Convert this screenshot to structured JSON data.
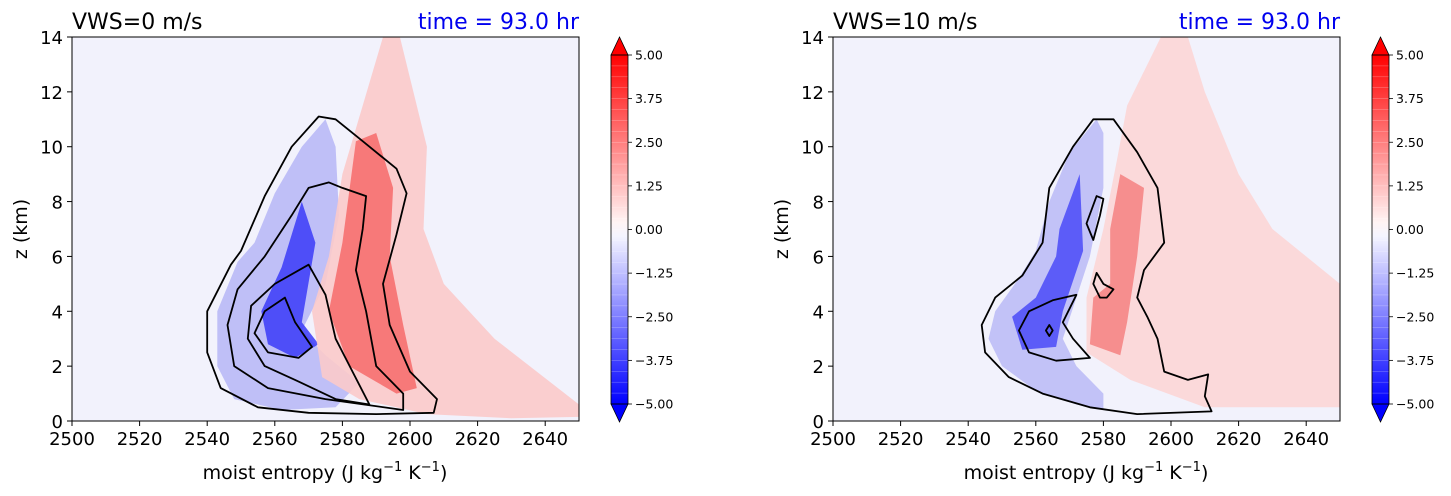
{
  "chart_data": [
    {
      "type": "contour",
      "title": "VWS=0 m/s",
      "time_label": "time = 93.0 hr",
      "xlabel": "moist entropy (J kg",
      "xlabel_sup1": "−1",
      "xlabel_mid": " K",
      "xlabel_sup2": "−1",
      "xlabel_end": ")",
      "ylabel": "z (km)",
      "xlim": [
        2500,
        2650
      ],
      "ylim": [
        0,
        14
      ],
      "xticks": [
        "2500",
        "2520",
        "2540",
        "2560",
        "2580",
        "2600",
        "2620",
        "2640"
      ],
      "yticks": [
        "0",
        "2",
        "4",
        "6",
        "8",
        "10",
        "12",
        "14"
      ],
      "colorbar": {
        "min": -5.0,
        "max": 5.0,
        "extend": "both",
        "ticks": [
          "5.00",
          "3.75",
          "2.50",
          "1.25",
          "0.00",
          "−1.25",
          "−2.50",
          "−3.75",
          "−5.00"
        ]
      },
      "negative_blob": [
        [
          2575,
          11
        ],
        [
          2568,
          10
        ],
        [
          2560,
          8.3
        ],
        [
          2554,
          6.5
        ],
        [
          2549,
          5.8
        ],
        [
          2543,
          4
        ],
        [
          2543,
          2
        ],
        [
          2548,
          0.8
        ],
        [
          2562,
          0.4
        ],
        [
          2578,
          0.5
        ],
        [
          2585,
          1.4
        ],
        [
          2575,
          2.4
        ],
        [
          2568,
          3.3
        ],
        [
          2575,
          5
        ],
        [
          2579,
          7.5
        ],
        [
          2578,
          10
        ]
      ],
      "negative_core": [
        [
          2568,
          8
        ],
        [
          2562,
          5.6
        ],
        [
          2556,
          4
        ],
        [
          2558,
          2.8
        ],
        [
          2566,
          2.3
        ],
        [
          2573,
          2.8
        ],
        [
          2568,
          3.6
        ],
        [
          2572,
          6.5
        ]
      ],
      "positive_blob": [
        [
          2586,
          11.5
        ],
        [
          2580,
          9
        ],
        [
          2576,
          6
        ],
        [
          2571,
          4
        ],
        [
          2574,
          1.6
        ],
        [
          2585,
          0.8
        ],
        [
          2605,
          0.25
        ],
        [
          2630,
          0.1
        ],
        [
          2650,
          0.15
        ],
        [
          2650,
          0.6
        ],
        [
          2625,
          3
        ],
        [
          2610,
          5
        ],
        [
          2604,
          7
        ],
        [
          2605,
          10
        ],
        [
          2600,
          12.5
        ],
        [
          2597,
          14
        ],
        [
          2592,
          14
        ]
      ],
      "positive_core": [
        [
          2584,
          10.2
        ],
        [
          2580,
          6.5
        ],
        [
          2576,
          4
        ],
        [
          2582,
          2
        ],
        [
          2596,
          1
        ],
        [
          2602,
          1.2
        ],
        [
          2598,
          3.5
        ],
        [
          2594,
          6
        ],
        [
          2595,
          8.5
        ],
        [
          2590,
          10.5
        ]
      ],
      "contours": [
        [
          [
            2573,
            11.1
          ],
          [
            2565,
            10
          ],
          [
            2557,
            8.2
          ],
          [
            2550,
            6.2
          ],
          [
            2547,
            5.7
          ],
          [
            2540,
            4
          ],
          [
            2540,
            2.5
          ],
          [
            2544,
            1.2
          ],
          [
            2555,
            0.5
          ],
          [
            2570,
            0.3
          ],
          [
            2590,
            0.25
          ],
          [
            2607,
            0.3
          ],
          [
            2608,
            0.8
          ],
          [
            2600,
            1.8
          ],
          [
            2594,
            3.5
          ],
          [
            2592,
            5
          ],
          [
            2596,
            6.8
          ],
          [
            2599,
            8.3
          ],
          [
            2596,
            9.2
          ],
          [
            2586,
            10.2
          ],
          [
            2578,
            11
          ]
        ],
        [
          [
            2570,
            8.5
          ],
          [
            2565,
            7.5
          ],
          [
            2557,
            6
          ],
          [
            2549,
            4.8
          ],
          [
            2546,
            3.5
          ],
          [
            2548,
            2
          ],
          [
            2558,
            1.2
          ],
          [
            2575,
            0.8
          ],
          [
            2598,
            0.4
          ],
          [
            2598,
            1
          ],
          [
            2590,
            2
          ],
          [
            2587,
            4
          ],
          [
            2584,
            5.5
          ],
          [
            2586,
            7
          ],
          [
            2587,
            8.2
          ],
          [
            2580,
            8.5
          ],
          [
            2576,
            8.7
          ]
        ],
        [
          [
            2570,
            5.7
          ],
          [
            2560,
            5
          ],
          [
            2553,
            4.2
          ],
          [
            2552,
            3
          ],
          [
            2557,
            2
          ],
          [
            2566,
            1.5
          ],
          [
            2578,
            0.8
          ],
          [
            2588,
            0.6
          ],
          [
            2583,
            1.8
          ],
          [
            2578,
            3
          ],
          [
            2575,
            4.6
          ]
        ],
        [
          [
            2563,
            4.5
          ],
          [
            2557,
            4
          ],
          [
            2554,
            3.2
          ],
          [
            2558,
            2.5
          ],
          [
            2567,
            2.3
          ],
          [
            2571,
            2.7
          ],
          [
            2566,
            3.6
          ]
        ]
      ]
    },
    {
      "type": "contour",
      "title": "VWS=10 m/s",
      "time_label": "time = 93.0 hr",
      "xlabel": "moist entropy (J kg",
      "xlabel_sup1": "−1",
      "xlabel_mid": " K",
      "xlabel_sup2": "−1",
      "xlabel_end": ")",
      "ylabel": "z (km)",
      "xlim": [
        2500,
        2650
      ],
      "ylim": [
        0,
        14
      ],
      "xticks": [
        "2500",
        "2520",
        "2540",
        "2560",
        "2580",
        "2600",
        "2620",
        "2640"
      ],
      "yticks": [
        "0",
        "2",
        "4",
        "6",
        "8",
        "10",
        "12",
        "14"
      ],
      "colorbar": {
        "min": -5.0,
        "max": 5.0,
        "extend": "both",
        "ticks": [
          "5.00",
          "3.75",
          "2.50",
          "1.25",
          "0.00",
          "−1.25",
          "−2.50",
          "−3.75",
          "−5.00"
        ]
      },
      "negative_blob": [
        [
          2578,
          11
        ],
        [
          2570,
          9.8
        ],
        [
          2564,
          8
        ],
        [
          2560,
          6.2
        ],
        [
          2555,
          5.2
        ],
        [
          2548,
          4
        ],
        [
          2546,
          3
        ],
        [
          2550,
          2
        ],
        [
          2560,
          1.1
        ],
        [
          2572,
          0.6
        ],
        [
          2580,
          0.4
        ],
        [
          2580,
          1
        ],
        [
          2572,
          2
        ],
        [
          2568,
          3
        ],
        [
          2572,
          4.5
        ],
        [
          2576,
          6
        ],
        [
          2580,
          8.5
        ],
        [
          2580,
          10.5
        ]
      ],
      "negative_core": [
        [
          2573,
          9
        ],
        [
          2567,
          7
        ],
        [
          2566,
          6
        ],
        [
          2560,
          4.5
        ],
        [
          2553,
          3.8
        ],
        [
          2556,
          2.6
        ],
        [
          2566,
          2.7
        ],
        [
          2568,
          4
        ],
        [
          2574,
          6.2
        ]
      ],
      "positive_blob": [
        [
          2587,
          11.5
        ],
        [
          2584,
          9.5
        ],
        [
          2580,
          7
        ],
        [
          2575,
          4.5
        ],
        [
          2575,
          2.5
        ],
        [
          2588,
          1.5
        ],
        [
          2610,
          0.5
        ],
        [
          2650,
          0.5
        ],
        [
          2650,
          5
        ],
        [
          2630,
          7
        ],
        [
          2620,
          9
        ],
        [
          2610,
          12
        ],
        [
          2605,
          14
        ],
        [
          2597,
          14
        ]
      ],
      "positive_core": [
        [
          2585,
          9
        ],
        [
          2582,
          7
        ],
        [
          2582,
          5
        ],
        [
          2577,
          4.5
        ],
        [
          2576,
          2.8
        ],
        [
          2585,
          2.4
        ],
        [
          2587,
          3.6
        ],
        [
          2590,
          6
        ],
        [
          2592,
          8.5
        ]
      ],
      "contours": [
        [
          [
            2577,
            11
          ],
          [
            2571,
            10
          ],
          [
            2564,
            8.5
          ],
          [
            2562,
            6.5
          ],
          [
            2556,
            5.3
          ],
          [
            2548,
            4.5
          ],
          [
            2544,
            3.5
          ],
          [
            2545,
            2.5
          ],
          [
            2552,
            1.6
          ],
          [
            2562,
            1
          ],
          [
            2576,
            0.5
          ],
          [
            2590,
            0.25
          ],
          [
            2612,
            0.35
          ],
          [
            2610,
            0.9
          ],
          [
            2611,
            1.7
          ],
          [
            2605,
            1.5
          ],
          [
            2598,
            1.8
          ],
          [
            2596,
            3
          ],
          [
            2593,
            3.8
          ],
          [
            2590,
            4.5
          ],
          [
            2592,
            5.5
          ],
          [
            2598,
            6.5
          ],
          [
            2597,
            7.5
          ],
          [
            2596,
            8.5
          ],
          [
            2590,
            9.8
          ],
          [
            2583,
            11
          ]
        ],
        [
          [
            2572,
            4.6
          ],
          [
            2565,
            4.4
          ],
          [
            2558,
            4
          ],
          [
            2555,
            3.3
          ],
          [
            2558,
            2.5
          ],
          [
            2566,
            2.2
          ],
          [
            2576,
            2.3
          ],
          [
            2571,
            3
          ],
          [
            2568,
            3.6
          ]
        ],
        [
          [
            2578,
            8.2
          ],
          [
            2575,
            7.2
          ],
          [
            2577,
            6.6
          ],
          [
            2579,
            7.5
          ],
          [
            2580,
            8.1
          ]
        ],
        [
          [
            2578,
            5.4
          ],
          [
            2580,
            5
          ],
          [
            2583,
            4.8
          ],
          [
            2581,
            4.5
          ],
          [
            2579,
            4.5
          ],
          [
            2577,
            5
          ]
        ],
        [
          [
            2564,
            3.5
          ],
          [
            2565,
            3.3
          ],
          [
            2564,
            3.1
          ],
          [
            2563,
            3.3
          ]
        ]
      ]
    }
  ],
  "colors": {
    "background_field": "#f2f2fc",
    "contour": "#000000",
    "time_label": "#0000ee",
    "text": "#000000"
  }
}
